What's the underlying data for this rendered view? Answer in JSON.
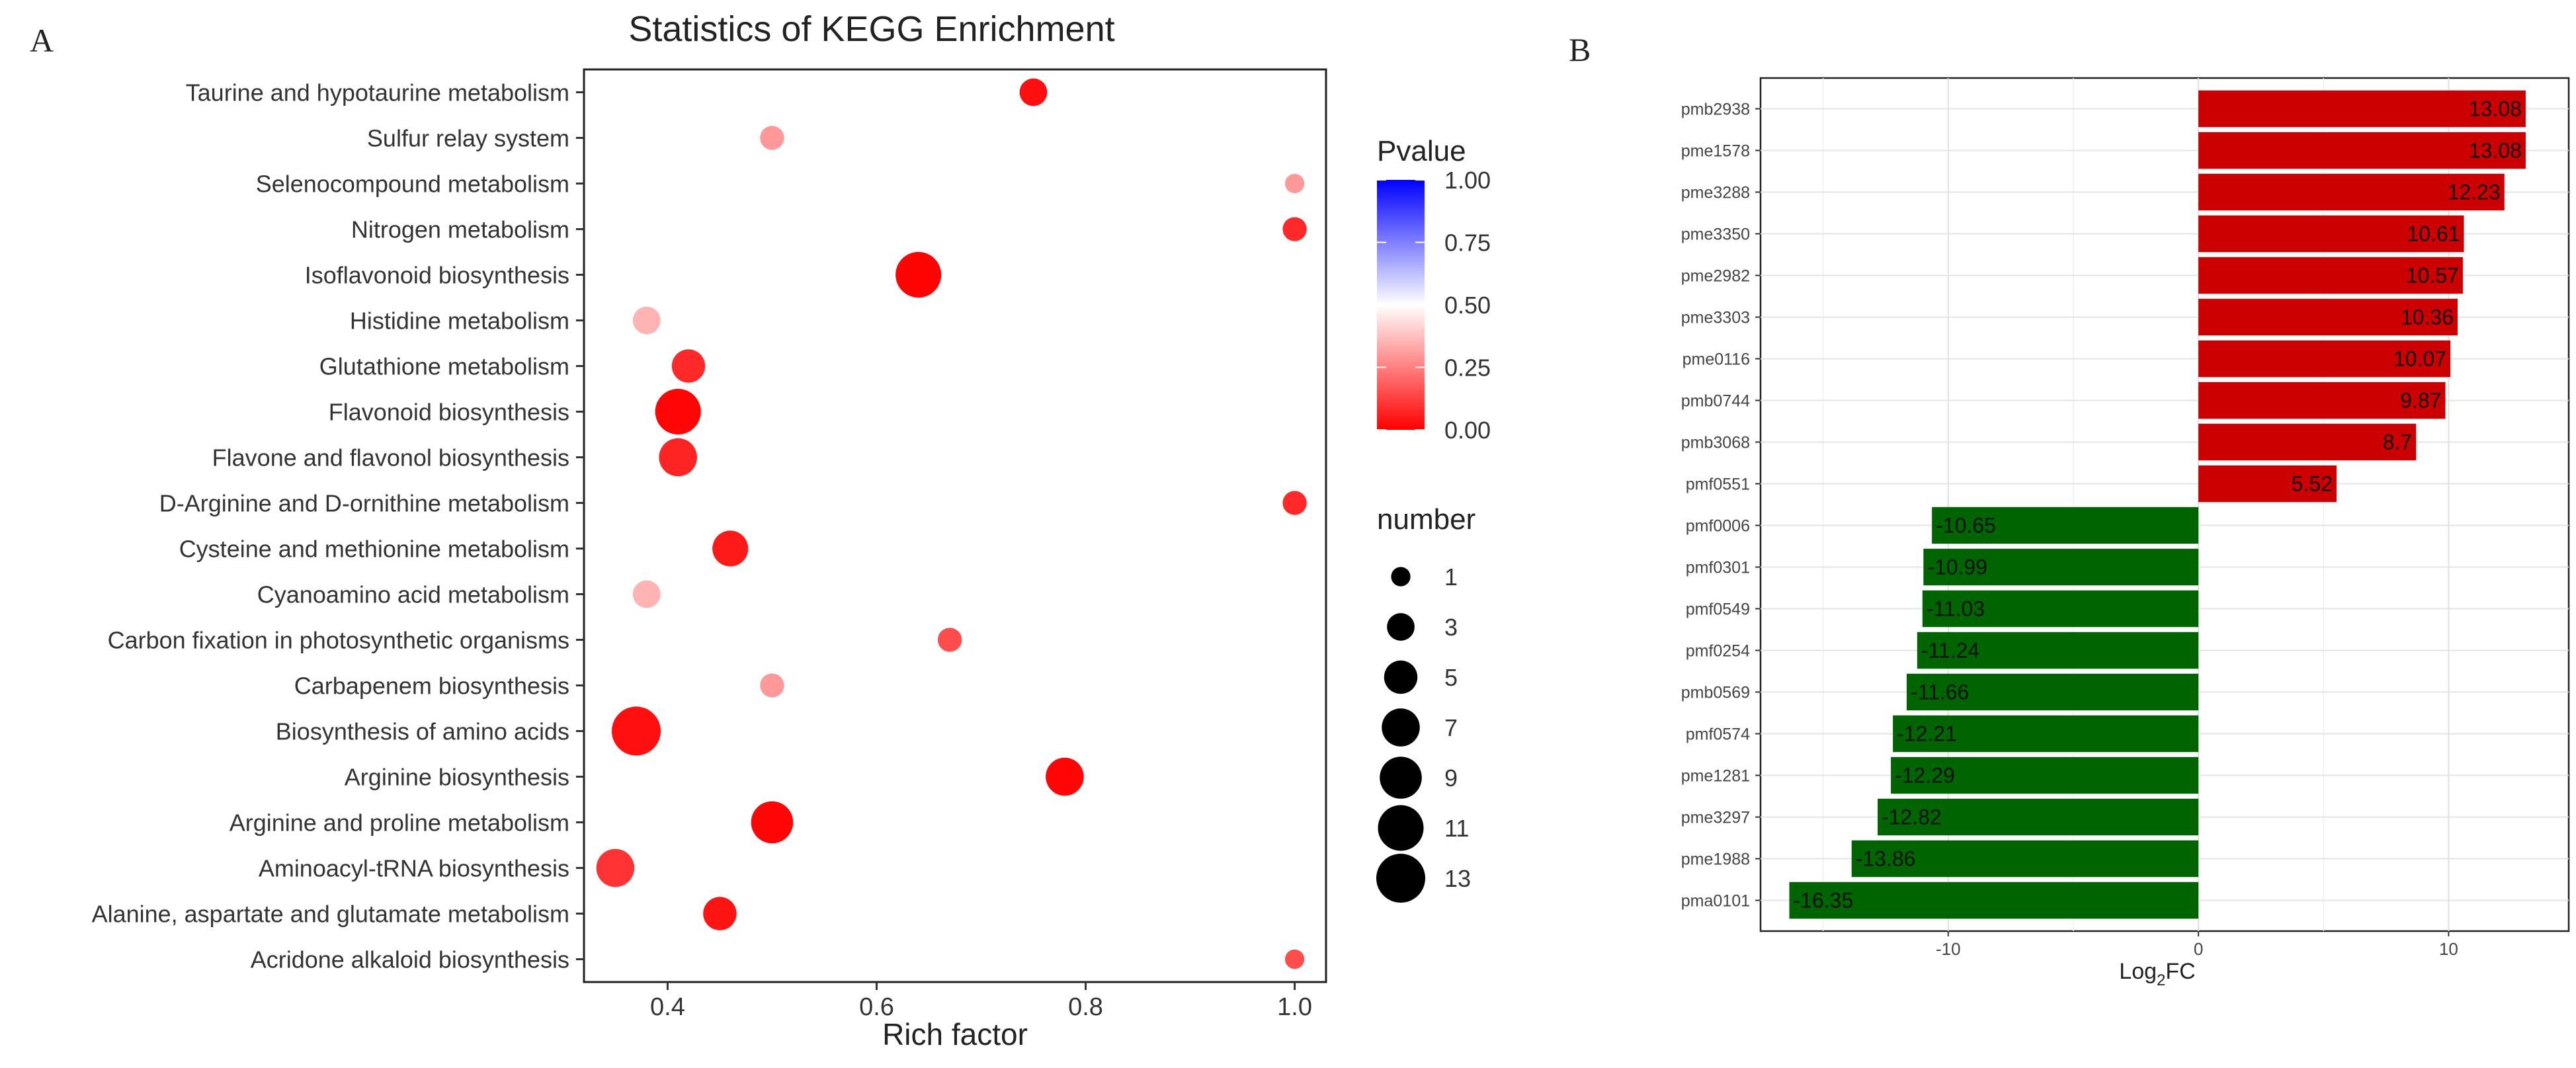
{
  "figure": {
    "panel_a_label": "A",
    "panel_b_label": "B"
  },
  "chart_data": [
    {
      "type": "scatter",
      "title": "Statistics of KEGG Enrichment",
      "xlabel": "Rich factor",
      "ylabel": "",
      "xlim": [
        0.32,
        1.03
      ],
      "xticks": [
        0.4,
        0.6,
        0.8,
        1.0
      ],
      "xtick_labels": [
        "0.4",
        "0.6",
        "0.8",
        "1.0"
      ],
      "grid": false,
      "categories": [
        "Taurine and hypotaurine metabolism",
        "Sulfur relay system",
        "Selenocompound metabolism",
        "Nitrogen metabolism",
        "Isoflavonoid biosynthesis",
        "Histidine metabolism",
        "Glutathione metabolism",
        "Flavonoid biosynthesis",
        "Flavone and flavonol biosynthesis",
        "D-Arginine and D-ornithine metabolism",
        "Cysteine and methionine metabolism",
        "Cyanoamino acid metabolism",
        "Carbon fixation in photosynthetic organisms",
        "Carbapenem biosynthesis",
        "Biosynthesis of amino acids",
        "Arginine biosynthesis",
        "Arginine and proline metabolism",
        "Aminoacyl-tRNA biosynthesis",
        "Alanine, aspartate and glutamate metabolism",
        "Acridone alkaloid biosynthesis"
      ],
      "points": [
        {
          "pathway": "Taurine and hypotaurine metabolism",
          "rich_factor": 0.75,
          "number": 3,
          "pvalue": 0.03
        },
        {
          "pathway": "Sulfur relay system",
          "rich_factor": 0.5,
          "number": 2,
          "pvalue": 0.3
        },
        {
          "pathway": "Selenocompound metabolism",
          "rich_factor": 1.0,
          "number": 1,
          "pvalue": 0.3
        },
        {
          "pathway": "Nitrogen metabolism",
          "rich_factor": 1.0,
          "number": 2,
          "pvalue": 0.08
        },
        {
          "pathway": "Isoflavonoid biosynthesis",
          "rich_factor": 0.64,
          "number": 11,
          "pvalue": 0.005
        },
        {
          "pathway": "Histidine metabolism",
          "rich_factor": 0.38,
          "number": 3,
          "pvalue": 0.35
        },
        {
          "pathway": "Glutathione metabolism",
          "rich_factor": 0.42,
          "number": 5,
          "pvalue": 0.08
        },
        {
          "pathway": "Flavonoid biosynthesis",
          "rich_factor": 0.41,
          "number": 11,
          "pvalue": 0.01
        },
        {
          "pathway": "Flavone and flavonol biosynthesis",
          "rich_factor": 0.41,
          "number": 7,
          "pvalue": 0.07
        },
        {
          "pathway": "D-Arginine and D-ornithine metabolism",
          "rich_factor": 1.0,
          "number": 2,
          "pvalue": 0.08
        },
        {
          "pathway": "Cysteine and methionine metabolism",
          "rich_factor": 0.46,
          "number": 6,
          "pvalue": 0.05
        },
        {
          "pathway": "Cyanoamino acid metabolism",
          "rich_factor": 0.38,
          "number": 3,
          "pvalue": 0.35
        },
        {
          "pathway": "Carbon fixation in photosynthetic organisms",
          "rich_factor": 0.67,
          "number": 2,
          "pvalue": 0.15
        },
        {
          "pathway": "Carbapenem biosynthesis",
          "rich_factor": 0.5,
          "number": 2,
          "pvalue": 0.3
        },
        {
          "pathway": "Biosynthesis of amino acids",
          "rich_factor": 0.37,
          "number": 13,
          "pvalue": 0.03
        },
        {
          "pathway": "Arginine biosynthesis",
          "rich_factor": 0.78,
          "number": 7,
          "pvalue": 0.01
        },
        {
          "pathway": "Arginine and proline metabolism",
          "rich_factor": 0.5,
          "number": 9,
          "pvalue": 0.01
        },
        {
          "pathway": "Aminoacyl-tRNA biosynthesis",
          "rich_factor": 0.35,
          "number": 7,
          "pvalue": 0.1
        },
        {
          "pathway": "Alanine, aspartate and glutamate metabolism",
          "rich_factor": 0.45,
          "number": 5,
          "pvalue": 0.04
        },
        {
          "pathway": "Acridone alkaloid biosynthesis",
          "rich_factor": 1.0,
          "number": 1,
          "pvalue": 0.15
        }
      ],
      "legend": {
        "color_title": "Pvalue",
        "color_ticks": [
          "1.00",
          "0.75",
          "0.50",
          "0.25",
          "0.00"
        ],
        "color_tick_values": [
          1.0,
          0.75,
          0.5,
          0.25,
          0.0
        ],
        "color_low": "#ff0000",
        "color_mid": "#ffffff",
        "color_high": "#0000ff",
        "size_title": "number",
        "size_values": [
          1,
          3,
          5,
          7,
          9,
          11,
          13
        ],
        "size_labels": [
          "1",
          "3",
          "5",
          "7",
          "9",
          "11",
          "13"
        ],
        "position": "right"
      }
    },
    {
      "type": "bar",
      "orientation": "horizontal",
      "xlabel": "Log",
      "xlabel_sub": "2",
      "xlabel_suffix": "FC",
      "xlim": [
        -17.5,
        14.8
      ],
      "xticks": [
        -10,
        0,
        10
      ],
      "xtick_labels": [
        "-10",
        "0",
        "10"
      ],
      "grid": true,
      "positive_color": "#cc0000",
      "negative_color": "#006400",
      "categories": [
        "pmb2938",
        "pme1578",
        "pme3288",
        "pme3350",
        "pme2982",
        "pme3303",
        "pme0116",
        "pmb0744",
        "pmb3068",
        "pmf0551",
        "pmf0006",
        "pmf0301",
        "pmf0549",
        "pmf0254",
        "pmb0569",
        "pmf0574",
        "pme1281",
        "pme3297",
        "pme1988",
        "pma0101"
      ],
      "values": [
        13.08,
        13.08,
        12.23,
        10.61,
        10.57,
        10.36,
        10.07,
        9.87,
        8.7,
        5.52,
        -10.65,
        -10.99,
        -11.03,
        -11.24,
        -11.66,
        -12.21,
        -12.29,
        -12.82,
        -13.86,
        -16.35
      ],
      "value_labels": [
        "13.08",
        "13.08",
        "12.23",
        "10.61",
        "10.57",
        "10.36",
        "10.07",
        "9.87",
        "8.7",
        "5.52",
        "-10.65",
        "-10.99",
        "-11.03",
        "-11.24",
        "-11.66",
        "-12.21",
        "-12.29",
        "-12.82",
        "-13.86",
        "-16.35"
      ]
    }
  ]
}
